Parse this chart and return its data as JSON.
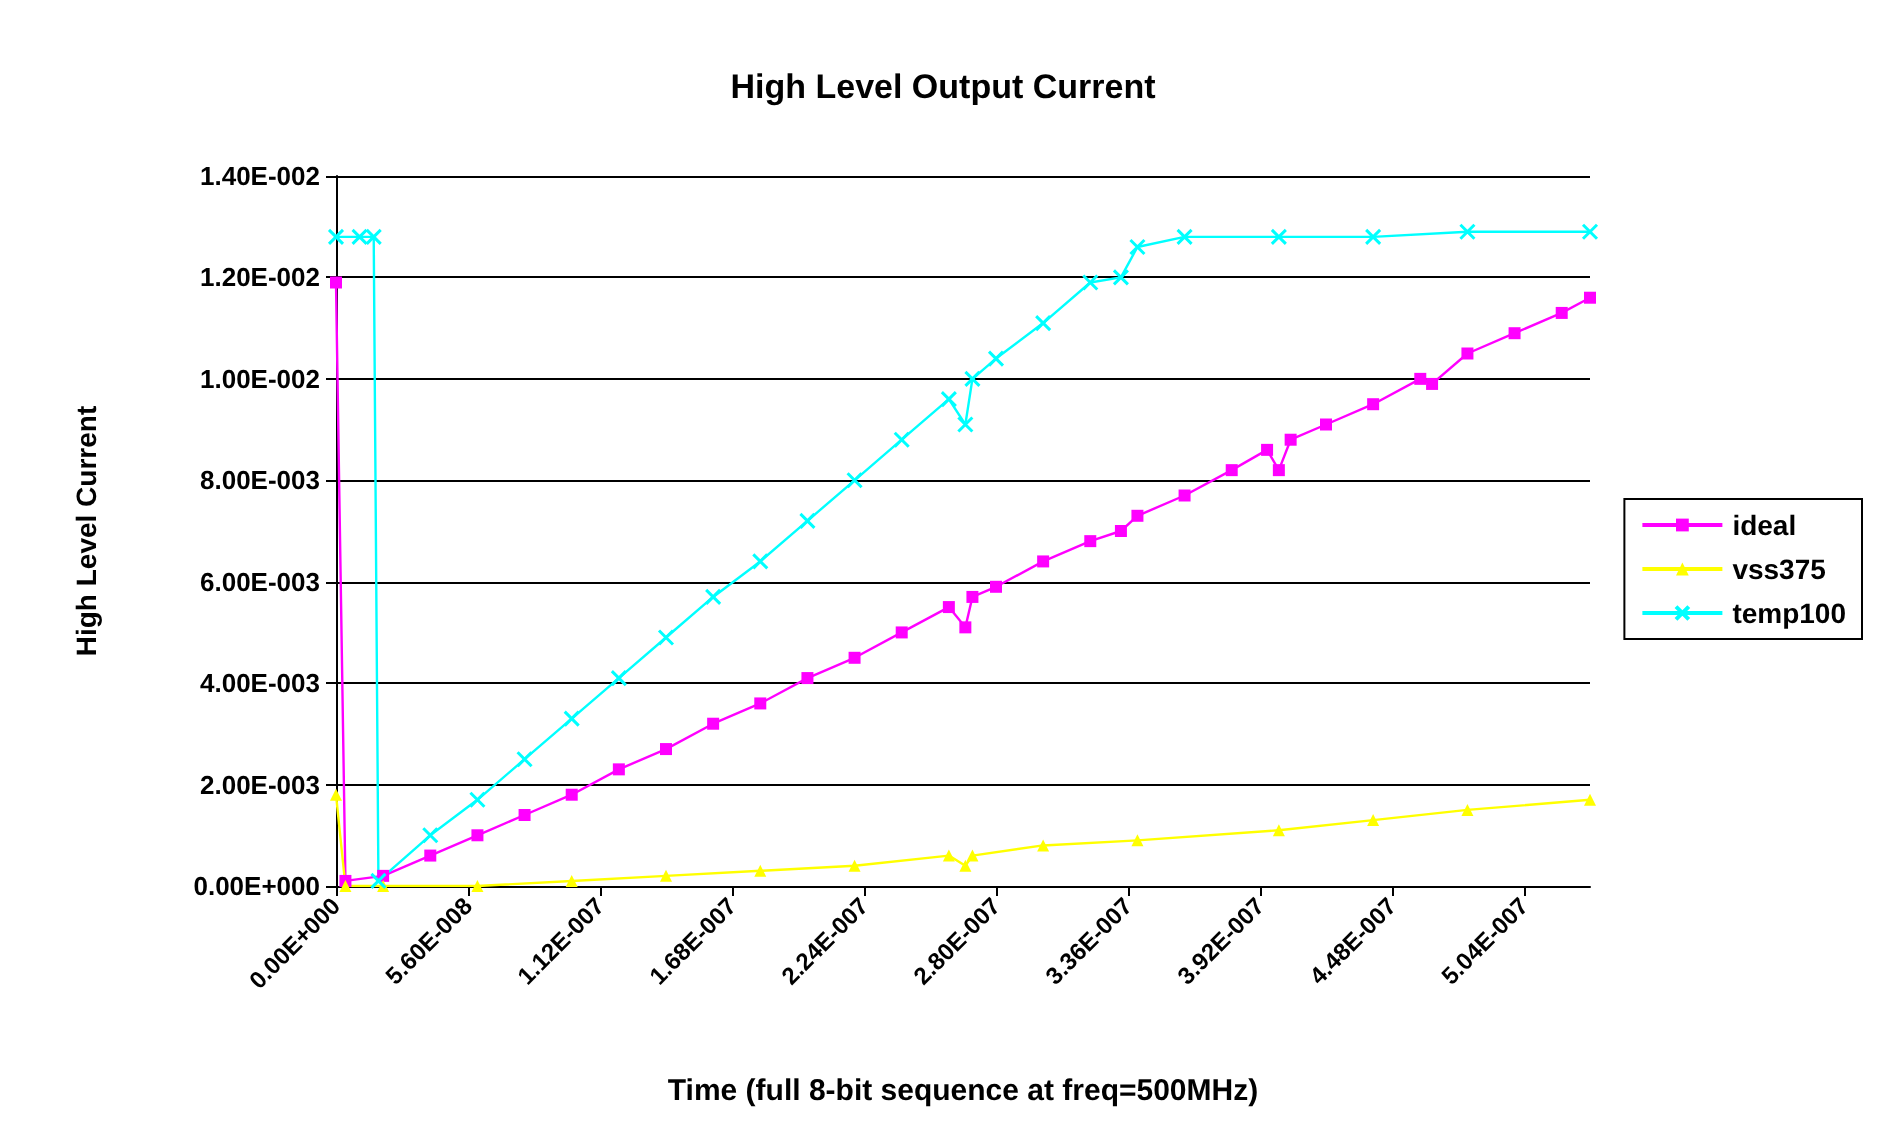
{
  "chart_data": {
    "type": "line",
    "title": "High Level Output Current",
    "xlabel": "Time (full 8-bit sequence at freq=500MHz)",
    "ylabel": "High Level Current",
    "xlim": [
      0,
      5.32e-07
    ],
    "xticks": [
      {
        "value": 0,
        "label": "0.00E+000"
      },
      {
        "value": 5.6e-08,
        "label": "5.60E-008"
      },
      {
        "value": 1.12e-07,
        "label": "1.12E-007"
      },
      {
        "value": 1.68e-07,
        "label": "1.68E-007"
      },
      {
        "value": 2.24e-07,
        "label": "2.24E-007"
      },
      {
        "value": 2.8e-07,
        "label": "2.80E-007"
      },
      {
        "value": 3.36e-07,
        "label": "3.36E-007"
      },
      {
        "value": 3.92e-07,
        "label": "3.92E-007"
      },
      {
        "value": 4.48e-07,
        "label": "4.48E-007"
      },
      {
        "value": 5.04e-07,
        "label": "5.04E-007"
      }
    ],
    "ylim": [
      0,
      0.014
    ],
    "yticks": [
      {
        "value": 0,
        "label": "0.00E+000"
      },
      {
        "value": 0.002,
        "label": "2.00E-003"
      },
      {
        "value": 0.004,
        "label": "4.00E-003"
      },
      {
        "value": 0.006,
        "label": "6.00E-003"
      },
      {
        "value": 0.008,
        "label": "8.00E-003"
      },
      {
        "value": 0.01,
        "label": "1.00E-002"
      },
      {
        "value": 0.012,
        "label": "1.20E-002"
      },
      {
        "value": 0.014,
        "label": "1.40E-002"
      }
    ],
    "grid": "y",
    "legend": "right",
    "series": [
      {
        "name": "ideal",
        "color": "#ff00ff",
        "marker": "square",
        "x": [
          0,
          4e-09,
          2e-08,
          4e-08,
          6e-08,
          8e-08,
          1e-07,
          1.2e-07,
          1.4e-07,
          1.6e-07,
          1.8e-07,
          2e-07,
          2.2e-07,
          2.4e-07,
          2.6e-07,
          2.67e-07,
          2.7e-07,
          2.8e-07,
          3e-07,
          3.2e-07,
          3.33e-07,
          3.4e-07,
          3.6e-07,
          3.8e-07,
          3.95e-07,
          4e-07,
          4.05e-07,
          4.2e-07,
          4.4e-07,
          4.6e-07,
          4.65e-07,
          4.8e-07,
          5e-07,
          5.2e-07,
          5.32e-07
        ],
        "values": [
          0.0119,
          0.0001,
          0.0002,
          0.0006,
          0.001,
          0.0014,
          0.0018,
          0.0023,
          0.0027,
          0.0032,
          0.0036,
          0.0041,
          0.0045,
          0.005,
          0.0055,
          0.0051,
          0.0057,
          0.0059,
          0.0064,
          0.0068,
          0.007,
          0.0073,
          0.0077,
          0.0082,
          0.0086,
          0.0082,
          0.0088,
          0.0091,
          0.0095,
          0.01,
          0.0099,
          0.0105,
          0.0109,
          0.0113,
          0.0116
        ]
      },
      {
        "name": "vss375",
        "color": "#ffff00",
        "marker": "triangle",
        "x": [
          0,
          4e-09,
          2e-08,
          6e-08,
          1e-07,
          1.4e-07,
          1.8e-07,
          2.2e-07,
          2.6e-07,
          2.67e-07,
          2.7e-07,
          3e-07,
          3.4e-07,
          4e-07,
          4.4e-07,
          4.8e-07,
          5.32e-07
        ],
        "values": [
          0.0018,
          0,
          0,
          0,
          0.0001,
          0.0002,
          0.0003,
          0.0004,
          0.0006,
          0.0004,
          0.0006,
          0.0008,
          0.0009,
          0.0011,
          0.0013,
          0.0015,
          0.0017
        ]
      },
      {
        "name": "temp100",
        "color": "#00ffff",
        "marker": "cross",
        "x": [
          0,
          1e-08,
          1.6e-08,
          1.8e-08,
          4e-08,
          6e-08,
          8e-08,
          1e-07,
          1.2e-07,
          1.4e-07,
          1.6e-07,
          1.8e-07,
          2e-07,
          2.2e-07,
          2.4e-07,
          2.6e-07,
          2.67e-07,
          2.7e-07,
          2.8e-07,
          3e-07,
          3.2e-07,
          3.33e-07,
          3.4e-07,
          3.6e-07,
          4e-07,
          4.4e-07,
          4.8e-07,
          5.32e-07
        ],
        "values": [
          0.0128,
          0.0128,
          0.0128,
          0.0001,
          0.001,
          0.0017,
          0.0025,
          0.0033,
          0.0041,
          0.0049,
          0.0057,
          0.0064,
          0.0072,
          0.008,
          0.0088,
          0.0096,
          0.0091,
          0.01,
          0.0104,
          0.0111,
          0.0119,
          0.012,
          0.0126,
          0.0128,
          0.0128,
          0.0128,
          0.0129,
          0.0129
        ]
      }
    ]
  }
}
